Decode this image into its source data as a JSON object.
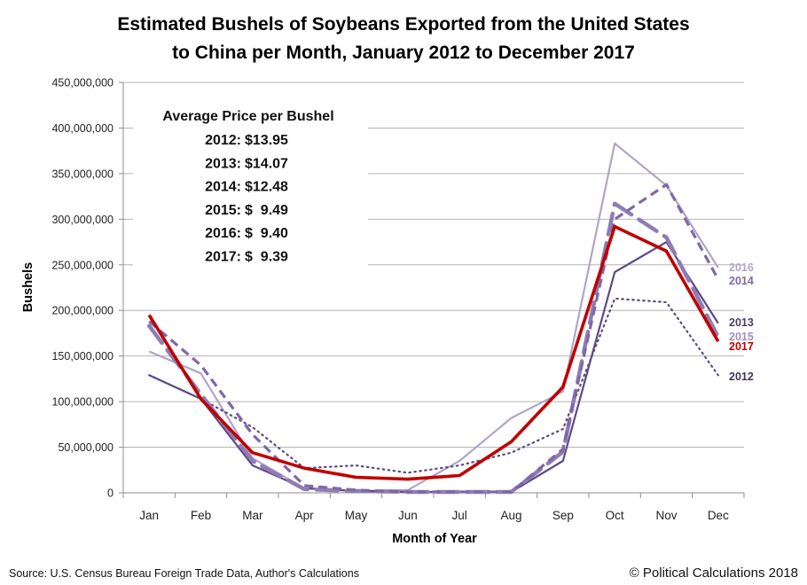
{
  "chart_data": {
    "type": "line",
    "title_lines": [
      "Estimated Bushels of Soybeans Exported from the United States",
      "to China per Month, January 2012 to December 2017"
    ],
    "xlabel": "Month of Year",
    "ylabel": "Bushels",
    "categories": [
      "Jan",
      "Feb",
      "Mar",
      "Apr",
      "May",
      "Jun",
      "Jul",
      "Aug",
      "Sep",
      "Oct",
      "Nov",
      "Dec"
    ],
    "ylim": [
      0,
      450000000
    ],
    "y_ticks": [
      0,
      50000000,
      100000000,
      150000000,
      200000000,
      250000000,
      300000000,
      350000000,
      400000000,
      450000000
    ],
    "y_tick_labels": [
      "0",
      "50,000,000",
      "100,000,000",
      "150,000,000",
      "200,000,000",
      "250,000,000",
      "300,000,000",
      "350,000,000",
      "400,000,000",
      "450,000,000"
    ],
    "grid": true,
    "legend_placement": "right, at line ends",
    "series": [
      {
        "name": "2012",
        "color": "#5b4a80",
        "style": "dotted",
        "values": [
          129000000,
          103000000,
          72000000,
          27000000,
          30000000,
          22000000,
          30000000,
          44000000,
          70000000,
          213000000,
          209000000,
          129000000
        ]
      },
      {
        "name": "2013",
        "color": "#5e4a86",
        "style": "solid-thin",
        "values": [
          129000000,
          103000000,
          30000000,
          5000000,
          2000000,
          1000000,
          1000000,
          1000000,
          35000000,
          242000000,
          275000000,
          186000000
        ]
      },
      {
        "name": "2014",
        "color": "#7e68a8",
        "style": "dashed",
        "values": [
          188000000,
          140000000,
          64000000,
          8000000,
          3000000,
          1000000,
          1000000,
          1000000,
          48000000,
          300000000,
          338000000,
          234000000
        ]
      },
      {
        "name": "2015",
        "color": "#8e7db5",
        "style": "long-dash-thick",
        "values": [
          183000000,
          108000000,
          35000000,
          4000000,
          2000000,
          1000000,
          1000000,
          1000000,
          45000000,
          317000000,
          280000000,
          171000000
        ]
      },
      {
        "name": "2016",
        "color": "#b1a5c8",
        "style": "solid-thin",
        "values": [
          155000000,
          131000000,
          38000000,
          5000000,
          2000000,
          3000000,
          35000000,
          82000000,
          111000000,
          383000000,
          337000000,
          247000000
        ]
      },
      {
        "name": "2017",
        "color": "#c00000",
        "style": "solid-thick",
        "values": [
          195000000,
          103000000,
          44000000,
          27000000,
          17000000,
          15000000,
          19000000,
          56000000,
          116000000,
          292000000,
          265000000,
          166000000
        ]
      }
    ],
    "annotations": {
      "heading": "Average Price per Bushel",
      "rows": [
        {
          "year": "2012:",
          "price": "$13.95"
        },
        {
          "year": "2013:",
          "price": "$14.07"
        },
        {
          "year": "2014:",
          "price": "$12.48"
        },
        {
          "year": "2015:",
          "price": "$  9.49"
        },
        {
          "year": "2016:",
          "price": "$  9.40"
        },
        {
          "year": "2017:",
          "price": "$  9.39"
        }
      ]
    },
    "legend_labels": [
      {
        "name": "2016",
        "color": "#b1a5c8"
      },
      {
        "name": "2014",
        "color": "#7e68a8"
      },
      {
        "name": "2013",
        "color": "#4b3f6b"
      },
      {
        "name": "2015",
        "color": "#9e8fc0"
      },
      {
        "name": "2017",
        "color": "#c00000"
      },
      {
        "name": "2012",
        "color": "#3f3559"
      }
    ]
  },
  "footer": {
    "source": "Source: U.S. Census Bureau  Foreign Trade Data,  Author's Calculations",
    "copyright": "© Political Calculations 2018"
  },
  "colors": {
    "gridline": "#b4b4b4",
    "axis": "#8c8c8c"
  }
}
